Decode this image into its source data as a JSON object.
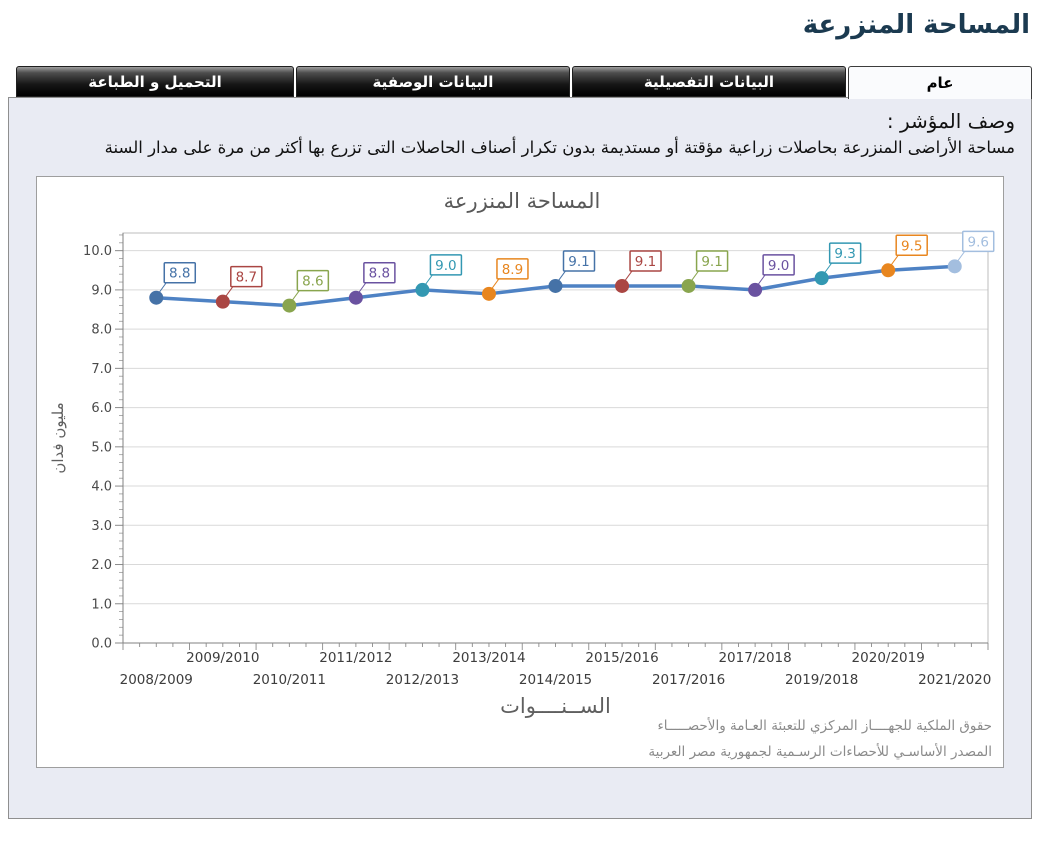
{
  "page": {
    "title": "المساحة المنزرعة"
  },
  "tabs": [
    {
      "label": "عام",
      "active": true
    },
    {
      "label": "البيانات التفصيلية",
      "active": false
    },
    {
      "label": "البيانات الوصفية",
      "active": false
    },
    {
      "label": "التحميل و الطباعة",
      "active": false
    }
  ],
  "description": {
    "heading": "وصف المؤشر :",
    "body": "مساحة الأراضى المنزرعة بحاصلات زراعية مؤقتة أو مستديمة بدون تكرار أصناف الحاصلات التى تزرع بها أكثر من مرة على مدار السنة"
  },
  "colors": {
    "page_title": "#1B3A50",
    "panel_background": "#E9EBF3",
    "tab_inactive": "#000000",
    "tab_active": "#FAFBFD"
  },
  "chart_data": {
    "type": "line",
    "title": "المساحة المنزرعة",
    "xlabel": "الســنــــوات",
    "ylabel": "مليون فدان",
    "categories": [
      "2008/2009",
      "2009/2010",
      "2010/2011",
      "2011/2012",
      "2012/2013",
      "2013/2014",
      "2014/2015",
      "2015/2016",
      "2017/2016",
      "2017/2018",
      "2019/2018",
      "2020/2019",
      "2021/2020"
    ],
    "values": [
      8.8,
      8.7,
      8.6,
      8.8,
      9.0,
      8.9,
      9.1,
      9.1,
      9.1,
      9.0,
      9.3,
      9.5,
      9.6
    ],
    "labels": [
      "8.8",
      "8.7",
      "8.6",
      "8.8",
      "9.0",
      "8.9",
      "9.1",
      "9.1",
      "9.1",
      "9.0",
      "9.3",
      "9.5",
      "9.6"
    ],
    "ylim": [
      0,
      10.45
    ],
    "ytick_step": 1.0,
    "ytick_max": 10,
    "grid": "horizontal",
    "legend": "none",
    "line_color": "#4E82C4",
    "point_colors": [
      "#4572A7",
      "#AA4643",
      "#89A54E",
      "#6A52A0",
      "#3398B2",
      "#E8861F",
      "#4572A7",
      "#AA4643",
      "#89A54E",
      "#6A52A0",
      "#3398B2",
      "#E8861F",
      "#A3BEDF"
    ],
    "credits": [
      "حقوق الملكية للجهــــاز المركزي للتعبئة العـامة والأحصـــــاء",
      "المصدر الأساسـي للأحصاءات الرسـمية لجمهورية مصر العربية"
    ]
  }
}
